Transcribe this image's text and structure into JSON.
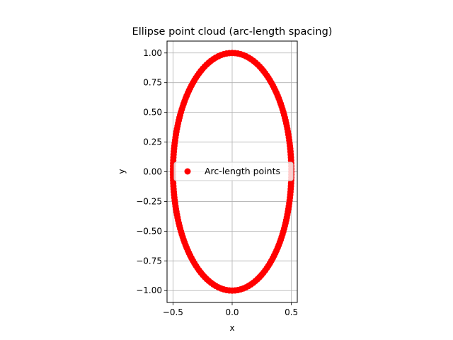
{
  "chart_data": {
    "type": "scatter",
    "title": "Ellipse point cloud (arc-length spacing)",
    "xlabel": "x",
    "ylabel": "y",
    "xlim": [
      -0.55,
      0.55
    ],
    "ylim": [
      -1.1,
      1.1
    ],
    "xticks": [
      -0.5,
      0.0,
      0.5
    ],
    "xtick_labels": [
      "−0.5",
      "0.0",
      "0.5"
    ],
    "yticks": [
      -1.0,
      -0.75,
      -0.5,
      -0.25,
      0.0,
      0.25,
      0.5,
      0.75,
      1.0
    ],
    "ytick_labels": [
      "−1.00",
      "−0.75",
      "−0.50",
      "−0.25",
      "0.00",
      "0.25",
      "0.50",
      "0.75",
      "1.00"
    ],
    "grid": true,
    "legend_position": "center",
    "series": [
      {
        "name": "Arc-length points",
        "color": "#ff0000",
        "marker": "circle",
        "shape": "ellipse",
        "semi_axis_x": 0.5,
        "semi_axis_y": 1.0,
        "point_count": 200
      }
    ]
  }
}
